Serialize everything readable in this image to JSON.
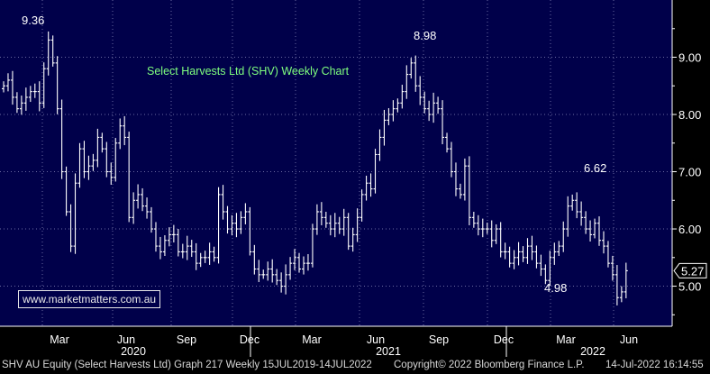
{
  "chart_data": {
    "type": "ohlc-bar",
    "title": "Select Harvests Ltd (SHV) Weekly Chart",
    "ylim": [
      4.3,
      10.0
    ],
    "yticks": [
      5.0,
      6.0,
      7.0,
      8.0,
      9.0
    ],
    "ytick_labels": [
      "5.00",
      "6.00",
      "7.00",
      "8.00",
      "9.00"
    ],
    "last_price_label": "5.27",
    "x_month_labels": [
      "Mar",
      "Jun",
      "Sep",
      "Dec",
      "Mar",
      "Jun",
      "Sep",
      "Dec",
      "Mar",
      "Jun"
    ],
    "x_year_labels": [
      "2020",
      "2021",
      "2022"
    ],
    "annotations": [
      {
        "text": "9.36",
        "value": 9.36
      },
      {
        "text": "8.98",
        "value": 8.98
      },
      {
        "text": "6.62",
        "value": 6.62
      },
      {
        "text": "4.98",
        "value": 4.98
      }
    ],
    "grid": true,
    "series": [
      {
        "closes": [
          8.5,
          8.6,
          8.3,
          8.1,
          8.2,
          8.3,
          8.4,
          8.4,
          8.2,
          8.8,
          9.3,
          8.9,
          8.1,
          7.0,
          6.3,
          5.7,
          6.8,
          7.4,
          7.0,
          7.1,
          7.2,
          7.6,
          7.4,
          7.0,
          6.9,
          7.5,
          7.8,
          7.6,
          6.2,
          6.5,
          6.6,
          6.4,
          6.3,
          6.0,
          5.7,
          5.6,
          5.8,
          5.9,
          5.9,
          5.6,
          5.6,
          5.7,
          5.6,
          5.4,
          5.5,
          5.5,
          5.6,
          5.5,
          6.6,
          6.3,
          6.0,
          6.1,
          6.0,
          6.2,
          6.3,
          5.6,
          5.3,
          5.2,
          5.2,
          5.3,
          5.2,
          5.1,
          5.0,
          5.2,
          5.4,
          5.5,
          5.3,
          5.4,
          5.4,
          6.0,
          6.3,
          6.2,
          6.1,
          6.0,
          6.1,
          6.0,
          6.2,
          5.7,
          5.9,
          6.2,
          6.6,
          6.8,
          6.7,
          7.3,
          7.6,
          7.9,
          8.0,
          8.1,
          8.2,
          8.4,
          8.7,
          8.9,
          8.5,
          8.3,
          8.1,
          8.0,
          8.2,
          8.1,
          7.6,
          7.4,
          7.0,
          6.7,
          6.6,
          7.1,
          6.2,
          6.1,
          6.0,
          6.0,
          6.0,
          5.8,
          6.0,
          5.6,
          5.6,
          5.4,
          5.5,
          5.6,
          5.5,
          5.7,
          5.6,
          5.4,
          5.3,
          5.1,
          5.5,
          5.6,
          5.7,
          6.0,
          6.4,
          6.5,
          6.3,
          6.2,
          6.0,
          5.9,
          6.1,
          5.8,
          5.7,
          5.4,
          5.2,
          4.8,
          4.9,
          5.27
        ]
      }
    ]
  },
  "footer": {
    "instrument": "SHV AU Equity (Select Harvests Ltd) Graph 217  Weekly 15JUL2019-14JUL2022",
    "copyright": "Copyright© 2022 Bloomberg Finance L.P.",
    "timestamp": "14-Jul-2022 16:14:55"
  },
  "watermark": "www.marketmatters.com.au",
  "colors": {
    "background": "#00004a",
    "bars": "#ffffff",
    "title": "#7fff7f",
    "grid": "#6a6aa0",
    "axis_text": "#ffffff"
  }
}
